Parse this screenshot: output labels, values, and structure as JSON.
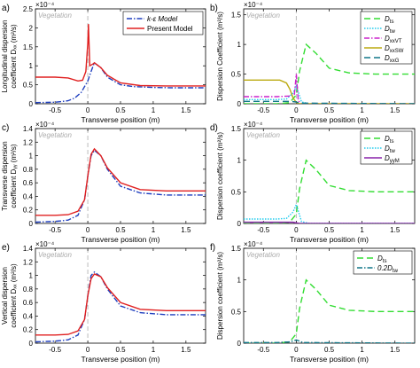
{
  "chart_data": [
    {
      "panel": "a)",
      "type": "line",
      "exponent": "×10⁻⁴",
      "ylabel_lines": [
        "Longitudinal dispersion",
        "coefficient Dₓₓ (m²/s)"
      ],
      "xlabel": "Transverse position (m)",
      "annotation": "Vegetation",
      "xlim": [
        -0.8,
        1.8
      ],
      "ylim": [
        0,
        2.5
      ],
      "xticks": [
        -0.5,
        0,
        0.5,
        1,
        1.5
      ],
      "xticklabels": [
        "-0.5",
        "0",
        "0.5",
        "1",
        "1.5"
      ],
      "yticks": [
        0,
        0.5,
        1,
        1.5,
        2,
        2.5
      ],
      "yticklabels": [
        "0",
        "0.5",
        "1",
        "1.5",
        "2",
        "2.5"
      ],
      "legend_position": "top-right",
      "series": [
        {
          "name": "k-ε Model",
          "color": "#1f3fbf",
          "dash": "6,2,1.5,2",
          "x": [
            -0.8,
            -0.5,
            -0.3,
            -0.2,
            -0.1,
            -0.05,
            0,
            0.05,
            0.1,
            0.2,
            0.3,
            0.5,
            0.7,
            1.0,
            1.3,
            1.8
          ],
          "y": [
            0.03,
            0.04,
            0.08,
            0.15,
            0.3,
            0.45,
            0.6,
            0.85,
            1.08,
            0.95,
            0.7,
            0.5,
            0.45,
            0.43,
            0.42,
            0.42
          ]
        },
        {
          "name": "Present Model",
          "color": "#e02020",
          "dash": "",
          "x": [
            -0.8,
            -0.5,
            -0.3,
            -0.15,
            -0.08,
            -0.03,
            0.0,
            0.01,
            0.03,
            0.08,
            0.1,
            0.2,
            0.3,
            0.5,
            0.8,
            1.2,
            1.8
          ],
          "y": [
            0.7,
            0.7,
            0.68,
            0.6,
            0.62,
            0.85,
            1.6,
            2.1,
            1.0,
            1.05,
            1.08,
            0.95,
            0.75,
            0.55,
            0.48,
            0.47,
            0.47
          ]
        }
      ]
    },
    {
      "panel": "b)",
      "type": "line",
      "exponent": "×10⁻⁴",
      "ylabel_lines": [
        "Dispersion Coefficient (m²/s)"
      ],
      "xlabel": "Transverse position (m)",
      "annotation": "Vegetation",
      "xlim": [
        -0.8,
        1.8
      ],
      "ylim": [
        0,
        1.6
      ],
      "xticks": [
        -0.5,
        0,
        0.5,
        1,
        1.5
      ],
      "xticklabels": [
        "-0.5",
        "0",
        "0.5",
        "1",
        "1.5"
      ],
      "yticks": [
        0,
        0.5,
        1,
        1.5
      ],
      "yticklabels": [
        "0",
        "0.5",
        "1",
        "1.5"
      ],
      "legend_position": "top-right",
      "series": [
        {
          "name": "D_ts",
          "label": "D",
          "sub": "ts",
          "color": "#33dd33",
          "dash": "7,4",
          "x": [
            -0.8,
            -0.3,
            -0.1,
            0,
            0.05,
            0.15,
            0.3,
            0.5,
            0.8,
            1.2,
            1.8
          ],
          "y": [
            0,
            0,
            0.02,
            0.15,
            0.55,
            1.0,
            0.85,
            0.6,
            0.52,
            0.5,
            0.5
          ]
        },
        {
          "name": "D_tw",
          "label": "D",
          "sub": "tw",
          "color": "#22ccee",
          "dash": "1.5,1.5",
          "x": [
            -0.8,
            -0.3,
            -0.15,
            -0.05,
            0,
            0.03,
            0.08,
            0.2,
            1.8
          ],
          "y": [
            0.07,
            0.07,
            0.08,
            0.18,
            0.3,
            0.2,
            0.03,
            0,
            0
          ]
        },
        {
          "name": "D_xxVT",
          "label": "D",
          "sub": "xxVT",
          "color": "#cc22cc",
          "dash": "6,2,1.5,2",
          "x": [
            -0.8,
            -0.3,
            -0.1,
            -0.03,
            0,
            0.03,
            0.08,
            1.8
          ],
          "y": [
            0.12,
            0.12,
            0.13,
            0.15,
            0.5,
            0.05,
            0,
            0
          ]
        },
        {
          "name": "D_xxSW",
          "label": "D",
          "sub": "xxSW",
          "color": "#bbaa11",
          "dash": "",
          "x": [
            -0.8,
            -0.4,
            -0.25,
            -0.15,
            -0.1,
            -0.05,
            0,
            0.05,
            1.8
          ],
          "y": [
            0.4,
            0.4,
            0.4,
            0.35,
            0.25,
            0.1,
            0.02,
            0,
            0
          ]
        },
        {
          "name": "D_xxG",
          "label": "D",
          "sub": "xxG",
          "color": "#117788",
          "dash": "7,4",
          "x": [
            -0.8,
            -0.3,
            -0.1,
            0,
            0.05,
            1.8
          ],
          "y": [
            0.04,
            0.04,
            0.04,
            0.03,
            0.01,
            0
          ]
        }
      ]
    },
    {
      "panel": "c)",
      "type": "line",
      "exponent": "×10⁻⁴",
      "ylabel_lines": [
        "Transverse dispersion",
        "coefficient Dᵧᵧ (m²/s)"
      ],
      "xlabel": "Transverse position (m)",
      "annotation": "Vegetation",
      "xlim": [
        -0.8,
        1.8
      ],
      "ylim": [
        0,
        1.4
      ],
      "xticks": [
        -0.5,
        0,
        0.5,
        1,
        1.5
      ],
      "xticklabels": [
        "-0.5",
        "0",
        "0.5",
        "1",
        "1.5"
      ],
      "yticks": [
        0,
        0.2,
        0.4,
        0.6,
        0.8,
        1,
        1.2,
        1.4
      ],
      "yticklabels": [
        "0",
        "0.2",
        "0.4",
        "0.6",
        "0.8",
        "1",
        "1.2",
        "1.4"
      ],
      "legend_position": "none",
      "series": [
        {
          "name": "k-ε Model",
          "color": "#1f3fbf",
          "dash": "6,2,1.5,2",
          "x": [
            -0.8,
            -0.5,
            -0.3,
            -0.15,
            -0.05,
            0,
            0.05,
            0.1,
            0.2,
            0.3,
            0.5,
            0.8,
            1.2,
            1.8
          ],
          "y": [
            0.02,
            0.03,
            0.05,
            0.12,
            0.35,
            0.7,
            1.0,
            1.08,
            1.0,
            0.8,
            0.55,
            0.45,
            0.42,
            0.42
          ]
        },
        {
          "name": "Present Model",
          "color": "#e02020",
          "dash": "",
          "x": [
            -0.8,
            -0.5,
            -0.3,
            -0.15,
            -0.05,
            0,
            0.05,
            0.1,
            0.2,
            0.3,
            0.5,
            0.8,
            1.2,
            1.8
          ],
          "y": [
            0.12,
            0.12,
            0.13,
            0.18,
            0.35,
            0.7,
            1.02,
            1.1,
            1.0,
            0.82,
            0.6,
            0.5,
            0.48,
            0.48
          ]
        }
      ]
    },
    {
      "panel": "d)",
      "type": "line",
      "exponent": "×10⁻⁴",
      "ylabel_lines": [
        "Dispersion coefficient (m²/s)"
      ],
      "xlabel": "Transverse position (m)",
      "annotation": "Vegetation",
      "xlim": [
        -0.8,
        1.8
      ],
      "ylim": [
        0,
        1.5
      ],
      "xticks": [
        -0.5,
        0,
        0.5,
        1,
        1.5
      ],
      "xticklabels": [
        "-0.5",
        "0",
        "0.5",
        "1",
        "1.5"
      ],
      "yticks": [
        0,
        0.5,
        1,
        1.5
      ],
      "yticklabels": [
        "0",
        "0.5",
        "1",
        "1.5"
      ],
      "legend_position": "top-right",
      "series": [
        {
          "name": "D_ts",
          "label": "D",
          "sub": "ts",
          "color": "#33dd33",
          "dash": "7,4",
          "x": [
            -0.8,
            -0.3,
            -0.1,
            0,
            0.05,
            0.15,
            0.3,
            0.5,
            0.8,
            1.2,
            1.8
          ],
          "y": [
            0,
            0,
            0.02,
            0.15,
            0.55,
            1.0,
            0.85,
            0.6,
            0.52,
            0.5,
            0.5
          ]
        },
        {
          "name": "D_tw",
          "label": "D",
          "sub": "tw",
          "color": "#22ccee",
          "dash": "1.5,1.5",
          "x": [
            -0.8,
            -0.3,
            -0.15,
            -0.05,
            0,
            0.03,
            0.08,
            0.2,
            1.8
          ],
          "y": [
            0.07,
            0.07,
            0.08,
            0.18,
            0.3,
            0.2,
            0.03,
            0,
            0
          ]
        },
        {
          "name": "D_yyM",
          "label": "D",
          "sub": "yyM",
          "color": "#8822aa",
          "dash": "",
          "x": [
            -0.8,
            -0.2,
            -0.05,
            0,
            0.05,
            1.8
          ],
          "y": [
            0.02,
            0.02,
            0.02,
            0.01,
            0,
            0
          ]
        }
      ]
    },
    {
      "panel": "e)",
      "type": "line",
      "exponent": "×10⁻⁴",
      "ylabel_lines": [
        "Vertical dispersion",
        "coefficient Dₓₓ (m²/s)"
      ],
      "xlabel": "Transverse position (m)",
      "annotation": "Vegetation",
      "xlim": [
        -0.8,
        1.8
      ],
      "ylim": [
        0,
        1.4
      ],
      "xticks": [
        -0.5,
        0,
        0.5,
        1,
        1.5
      ],
      "xticklabels": [
        "-0.5",
        "0",
        "0.5",
        "1",
        "1.5"
      ],
      "yticks": [
        0,
        0.2,
        0.4,
        0.6,
        0.8,
        1,
        1.2,
        1.4
      ],
      "yticklabels": [
        "0",
        "0.2",
        "0.4",
        "0.6",
        "0.8",
        "1",
        "1.2",
        "1.4"
      ],
      "legend_position": "none",
      "series": [
        {
          "name": "k-ε Model",
          "color": "#1f3fbf",
          "dash": "6,2,1.5,2",
          "x": [
            -0.8,
            -0.5,
            -0.3,
            -0.15,
            -0.05,
            0,
            0.05,
            0.1,
            0.2,
            0.3,
            0.5,
            0.8,
            1.2,
            1.8
          ],
          "y": [
            0.02,
            0.03,
            0.05,
            0.12,
            0.35,
            0.7,
            1.0,
            1.05,
            0.98,
            0.8,
            0.55,
            0.45,
            0.42,
            0.42
          ]
        },
        {
          "name": "Present Model",
          "color": "#e02020",
          "dash": "",
          "x": [
            -0.8,
            -0.5,
            -0.3,
            -0.15,
            -0.05,
            0,
            0.05,
            0.1,
            0.2,
            0.3,
            0.5,
            0.8,
            1.2,
            1.8
          ],
          "y": [
            0.12,
            0.12,
            0.13,
            0.18,
            0.35,
            0.7,
            0.95,
            1.02,
            0.98,
            0.82,
            0.6,
            0.5,
            0.48,
            0.48
          ]
        }
      ]
    },
    {
      "panel": "f)",
      "type": "line",
      "exponent": "×10⁻⁴",
      "ylabel_lines": [
        "Dispersion coefficient (m²/s)"
      ],
      "xlabel": "Transverse position (m)",
      "annotation": "Vegetation",
      "xlim": [
        -0.8,
        1.8
      ],
      "ylim": [
        0,
        1.5
      ],
      "xticks": [
        -0.5,
        0,
        0.5,
        1,
        1.5
      ],
      "xticklabels": [
        "-0.5",
        "0",
        "0.5",
        "1",
        "1.5"
      ],
      "yticks": [
        0,
        0.5,
        1,
        1.5
      ],
      "yticklabels": [
        "0",
        "0.5",
        "1",
        "1.5"
      ],
      "legend_position": "top-right",
      "series": [
        {
          "name": "D_ts",
          "label": "D",
          "sub": "ts",
          "color": "#33dd33",
          "dash": "7,4",
          "x": [
            -0.8,
            -0.3,
            -0.1,
            0,
            0.05,
            0.15,
            0.3,
            0.5,
            0.8,
            1.2,
            1.8
          ],
          "y": [
            0,
            0,
            0.02,
            0.15,
            0.55,
            1.0,
            0.85,
            0.6,
            0.52,
            0.5,
            0.5
          ]
        },
        {
          "name": "0.2D_tw",
          "label": "0.2D",
          "sub": "tw",
          "color": "#117788",
          "dash": "6,2,1.5,2",
          "x": [
            -0.8,
            -0.3,
            -0.1,
            0,
            0.03,
            0.1,
            1.8
          ],
          "y": [
            0.01,
            0.01,
            0.02,
            0.05,
            0.04,
            0.01,
            0
          ]
        }
      ]
    }
  ]
}
